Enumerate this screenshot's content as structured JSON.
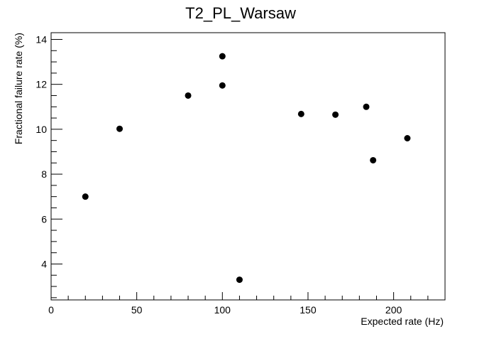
{
  "chart_data": {
    "type": "scatter",
    "title": "T2_PL_Warsaw",
    "xlabel": "Expected rate (Hz)",
    "ylabel": "Fractional failure rate (%)",
    "xlim": [
      0,
      230
    ],
    "ylim": [
      2.4,
      14.3
    ],
    "x_ticks": [
      0,
      50,
      100,
      150,
      200
    ],
    "y_ticks": [
      4,
      6,
      8,
      10,
      12,
      14
    ],
    "x_tick_labels": [
      "0",
      "50",
      "100",
      "150",
      "200"
    ],
    "y_tick_labels": [
      "4",
      "6",
      "8",
      "10",
      "12",
      "14"
    ],
    "grid": false,
    "legend": "none",
    "marker_color": "#000000",
    "points": [
      {
        "x": 20,
        "y": 7.0
      },
      {
        "x": 40,
        "y": 10.02
      },
      {
        "x": 80,
        "y": 11.5
      },
      {
        "x": 100,
        "y": 13.25
      },
      {
        "x": 100,
        "y": 11.95
      },
      {
        "x": 110,
        "y": 3.3
      },
      {
        "x": 146,
        "y": 10.68
      },
      {
        "x": 166,
        "y": 10.65
      },
      {
        "x": 184,
        "y": 11.0
      },
      {
        "x": 188,
        "y": 8.62
      },
      {
        "x": 208,
        "y": 9.6
      }
    ]
  }
}
